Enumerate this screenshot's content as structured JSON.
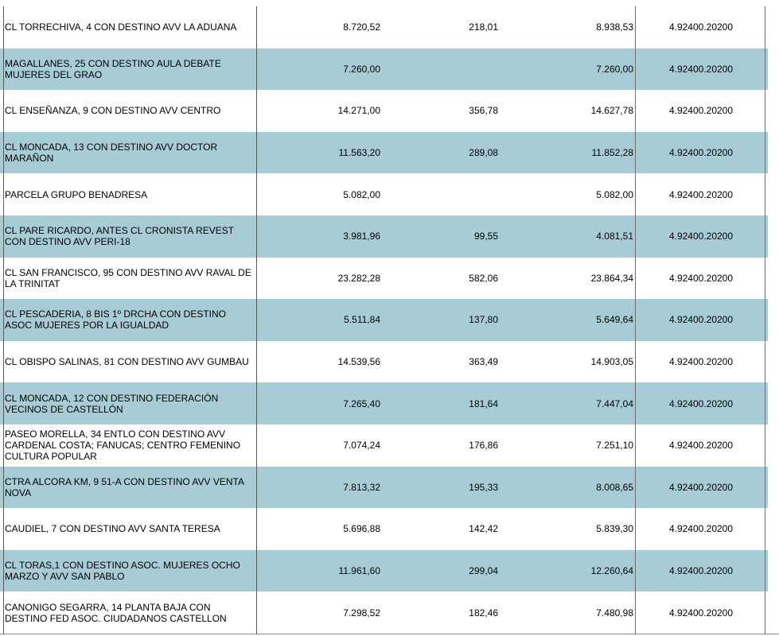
{
  "colors": {
    "row_highlight": "#a8ccd6",
    "grid_line": "#5a5a5a",
    "text": "#000000"
  },
  "table": {
    "rows": [
      {
        "description": "CL TORRECHIVA, 4 CON DESTINO AVV LA ADUANA",
        "amount1": "8.720,52",
        "amount2": "218,01",
        "total": "8.938,53",
        "code": "4.92400.20200"
      },
      {
        "description": "MAGALLANES, 25 CON DESTINO AULA DEBATE MUJERES DEL GRAO",
        "amount1": "7.260,00",
        "amount2": "",
        "total": "7.260,00",
        "code": "4.92400.20200"
      },
      {
        "description": "CL ENSEÑANZA, 9 CON DESTINO AVV CENTRO",
        "amount1": "14.271,00",
        "amount2": "356,78",
        "total": "14.627,78",
        "code": "4.92400.20200"
      },
      {
        "description": "CL MONCADA, 13 CON DESTINO AVV DOCTOR MARAÑON",
        "amount1": "11.563,20",
        "amount2": "289,08",
        "total": "11.852,28",
        "code": "4.92400.20200"
      },
      {
        "description": "PARCELA GRUPO BENADRESA",
        "amount1": "5.082,00",
        "amount2": "",
        "total": "5.082,00",
        "code": "4.92400.20200"
      },
      {
        "description": "CL PARE RICARDO, ANTES CL CRONISTA REVEST CON DESTINO AVV PERI-18",
        "amount1": "3.981,96",
        "amount2": "99,55",
        "total": "4.081,51",
        "code": "4.92400.20200"
      },
      {
        "description": "CL SAN FRANCISCO, 95 CON DESTINO AVV RAVAL DE LA TRINITAT",
        "amount1": "23.282,28",
        "amount2": "582,06",
        "total": "23.864,34",
        "code": "4.92400.20200"
      },
      {
        "description": "CL PESCADERIA, 8 BIS 1º DRCHA CON DESTINO ASOC MUJERES POR LA IGUALDAD",
        "amount1": "5.511,84",
        "amount2": "137,80",
        "total": "5.649,64",
        "code": "4.92400.20200"
      },
      {
        "description": "CL OBISPO SALINAS, 81 CON DESTINO AVV GUMBAU",
        "amount1": "14.539,56",
        "amount2": "363,49",
        "total": "14.903,05",
        "code": "4.92400.20200"
      },
      {
        "description": "CL MONCADA, 12 CON DESTINO FEDERACIÓN VECINOS DE CASTELLÓN",
        "amount1": "7.265,40",
        "amount2": "181,64",
        "total": "7.447,04",
        "code": "4.92400.20200"
      },
      {
        "description": "PASEO MORELLA, 34 ENTLO CON DESTINO AVV CARDENAL COSTA; FANUCAS; CENTRO FEMENINO CULTURA POPULAR",
        "amount1": "7.074,24",
        "amount2": "176,86",
        "total": "7.251,10",
        "code": "4.92400.20200"
      },
      {
        "description": "CTRA ALCORA KM, 9 51-A CON DESTINO AVV VENTA NOVA",
        "amount1": "7.813,32",
        "amount2": "195,33",
        "total": "8.008,65",
        "code": "4.92400.20200"
      },
      {
        "description": "CAUDIEL, 7 CON DESTINO AVV SANTA TERESA",
        "amount1": "5.696,88",
        "amount2": "142,42",
        "total": "5.839,30",
        "code": "4.92400.20200"
      },
      {
        "description": "CL TORAS,1 CON DESTINO ASOC. MUJERES OCHO MARZO Y AVV SAN PABLO",
        "amount1": "11.961,60",
        "amount2": "299,04",
        "total": "12.260,64",
        "code": "4.92400.20200"
      },
      {
        "description": "CANONIGO SEGARRA, 14 PLANTA BAJA CON DESTINO FED ASOC. CIUDADANOS CASTELLON",
        "amount1": "7.298,52",
        "amount2": "182,46",
        "total": "7.480,98",
        "code": "4.92400.20200"
      }
    ]
  }
}
